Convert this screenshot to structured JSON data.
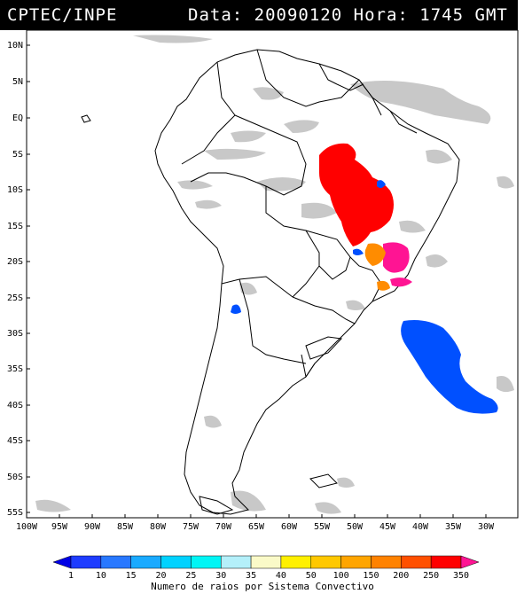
{
  "header": {
    "org": "CPTEC/INPE",
    "date_label": "Data:",
    "date": "20090120",
    "time_label": "Hora:",
    "time": "1745",
    "zone": "GMT"
  },
  "map": {
    "lat_labels": [
      "10N",
      "5N",
      "EQ",
      "5S",
      "10S",
      "15S",
      "20S",
      "25S",
      "30S",
      "35S",
      "40S",
      "45S",
      "50S",
      "55S"
    ],
    "lon_labels": [
      "100W",
      "95W",
      "90W",
      "85W",
      "80W",
      "75W",
      "70W",
      "65W",
      "60W",
      "55W",
      "50W",
      "45W",
      "40W",
      "35W",
      "30W"
    ],
    "colors": {
      "land_outline": "#000000",
      "cloud": "#c8c8c8",
      "red": "#ff0000",
      "magenta": "#ff1493",
      "orange": "#ff8c00",
      "blue": "#0050ff",
      "darkblue": "#0020e0"
    }
  },
  "colorbar": {
    "ticks": [
      "1",
      "10",
      "15",
      "20",
      "25",
      "30",
      "35",
      "40",
      "50",
      "100",
      "150",
      "200",
      "250",
      "350"
    ],
    "colors": [
      "#0000e6",
      "#1e3cff",
      "#2878ff",
      "#19aaff",
      "#00d2ff",
      "#00f5f5",
      "#b4f0fa",
      "#fafac8",
      "#fff000",
      "#ffc800",
      "#ffa500",
      "#ff8200",
      "#ff5000",
      "#ff0000",
      "#ff1493"
    ],
    "caption": "Numero de raios por Sistema Convectivo"
  }
}
